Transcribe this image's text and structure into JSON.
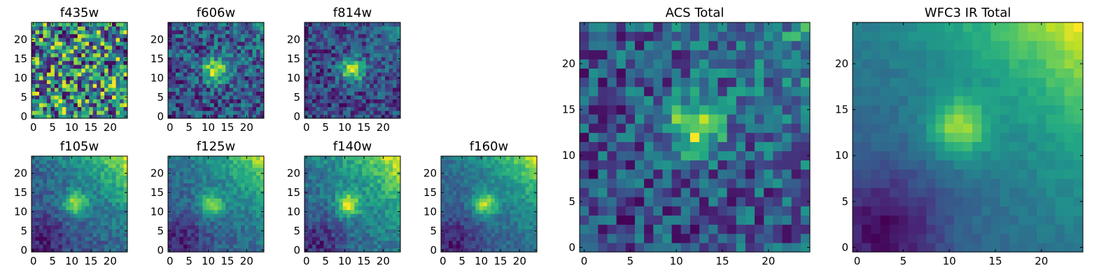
{
  "chart_data": [
    {
      "type": "heatmap",
      "id": "f435w",
      "title": "f435w",
      "size": 25,
      "xticks": [
        0,
        5,
        10,
        15,
        20
      ],
      "yticks": [
        0,
        5,
        10,
        15,
        20
      ],
      "colormap": "viridis",
      "grid": false,
      "pattern": "noise-dominated field, no visible source",
      "source_center": [
        12,
        12
      ],
      "source_amplitude": 0.0,
      "noise": 0.48,
      "base": 0.62,
      "gradient_top_right": 0.0,
      "gradient_bottom_left": 0.0,
      "seed": 11
    },
    {
      "type": "heatmap",
      "id": "f606w",
      "title": "f606w",
      "size": 25,
      "xticks": [
        0,
        5,
        10,
        15,
        20
      ],
      "yticks": [
        0,
        5,
        10,
        15,
        20
      ],
      "colormap": "viridis",
      "grid": false,
      "pattern": "faint central source in noise",
      "source_center": [
        12,
        12
      ],
      "source_amplitude": 0.55,
      "noise": 0.42,
      "base": 0.5,
      "gradient_top_right": 0.12,
      "gradient_bottom_left": 0.0,
      "seed": 23
    },
    {
      "type": "heatmap",
      "id": "f814w",
      "title": "f814w",
      "size": 25,
      "xticks": [
        0,
        5,
        10,
        15,
        20
      ],
      "yticks": [
        0,
        5,
        10,
        15,
        20
      ],
      "colormap": "viridis",
      "grid": false,
      "pattern": "central source in noise",
      "source_center": [
        12,
        12
      ],
      "source_amplitude": 0.65,
      "noise": 0.42,
      "base": 0.48,
      "gradient_top_right": 0.15,
      "gradient_bottom_left": 0.0,
      "seed": 37
    },
    {
      "type": "heatmap",
      "id": "f105w",
      "title": "f105w",
      "size": 25,
      "xticks": [
        0,
        5,
        10,
        15,
        20
      ],
      "yticks": [
        0,
        5,
        10,
        15,
        20
      ],
      "colormap": "viridis",
      "grid": false,
      "pattern": "central source, bright top-right corner",
      "source_center": [
        11,
        12
      ],
      "source_amplitude": 0.45,
      "noise": 0.2,
      "base": 0.38,
      "gradient_top_right": 0.55,
      "gradient_bottom_left": 0.15,
      "seed": 51
    },
    {
      "type": "heatmap",
      "id": "f125w",
      "title": "f125w",
      "size": 25,
      "xticks": [
        0,
        5,
        10,
        15,
        20
      ],
      "yticks": [
        0,
        5,
        10,
        15,
        20
      ],
      "colormap": "viridis",
      "grid": false,
      "pattern": "central source, bright top-right corner",
      "source_center": [
        11,
        12
      ],
      "source_amplitude": 0.45,
      "noise": 0.22,
      "base": 0.38,
      "gradient_top_right": 0.6,
      "gradient_bottom_left": 0.2,
      "seed": 67
    },
    {
      "type": "heatmap",
      "id": "f140w",
      "title": "f140w",
      "size": 25,
      "xticks": [
        0,
        5,
        10,
        15,
        20
      ],
      "yticks": [
        0,
        5,
        10,
        15,
        20
      ],
      "colormap": "viridis",
      "grid": false,
      "pattern": "central source, bright top-right corner",
      "source_center": [
        11,
        12
      ],
      "source_amplitude": 0.45,
      "noise": 0.2,
      "base": 0.36,
      "gradient_top_right": 0.55,
      "gradient_bottom_left": 0.18,
      "seed": 79
    },
    {
      "type": "heatmap",
      "id": "f160w",
      "title": "f160w",
      "size": 25,
      "xticks": [
        0,
        5,
        10,
        15,
        20
      ],
      "yticks": [
        0,
        5,
        10,
        15,
        20
      ],
      "colormap": "viridis",
      "grid": false,
      "pattern": "central source, bright top-right corner",
      "source_center": [
        11,
        12
      ],
      "source_amplitude": 0.5,
      "noise": 0.18,
      "base": 0.36,
      "gradient_top_right": 0.6,
      "gradient_bottom_left": 0.2,
      "seed": 97
    },
    {
      "type": "heatmap",
      "id": "acs_total",
      "title": "ACS Total",
      "size": 25,
      "xticks": [
        0,
        5,
        10,
        15,
        20
      ],
      "yticks": [
        0,
        5,
        10,
        15,
        20
      ],
      "colormap": "viridis",
      "grid": false,
      "pattern": "bright central column on noisy green field",
      "source_center": [
        12,
        13
      ],
      "source_amplitude": 0.35,
      "noise": 0.3,
      "base": 0.6,
      "gradient_top_right": 0.15,
      "gradient_bottom_left": 0.0,
      "seed": 113
    },
    {
      "type": "heatmap",
      "id": "wfc3_ir_total",
      "title": "WFC3 IR Total",
      "size": 25,
      "xticks": [
        0,
        5,
        10,
        15,
        20
      ],
      "yticks": [
        0,
        5,
        10,
        15,
        20
      ],
      "colormap": "viridis",
      "grid": false,
      "pattern": "smooth central source, bright top-right corner, dark bottom-left",
      "source_center": [
        11,
        13
      ],
      "source_amplitude": 0.42,
      "noise": 0.08,
      "base": 0.4,
      "gradient_top_right": 0.62,
      "gradient_bottom_left": 0.3,
      "seed": 131
    }
  ]
}
